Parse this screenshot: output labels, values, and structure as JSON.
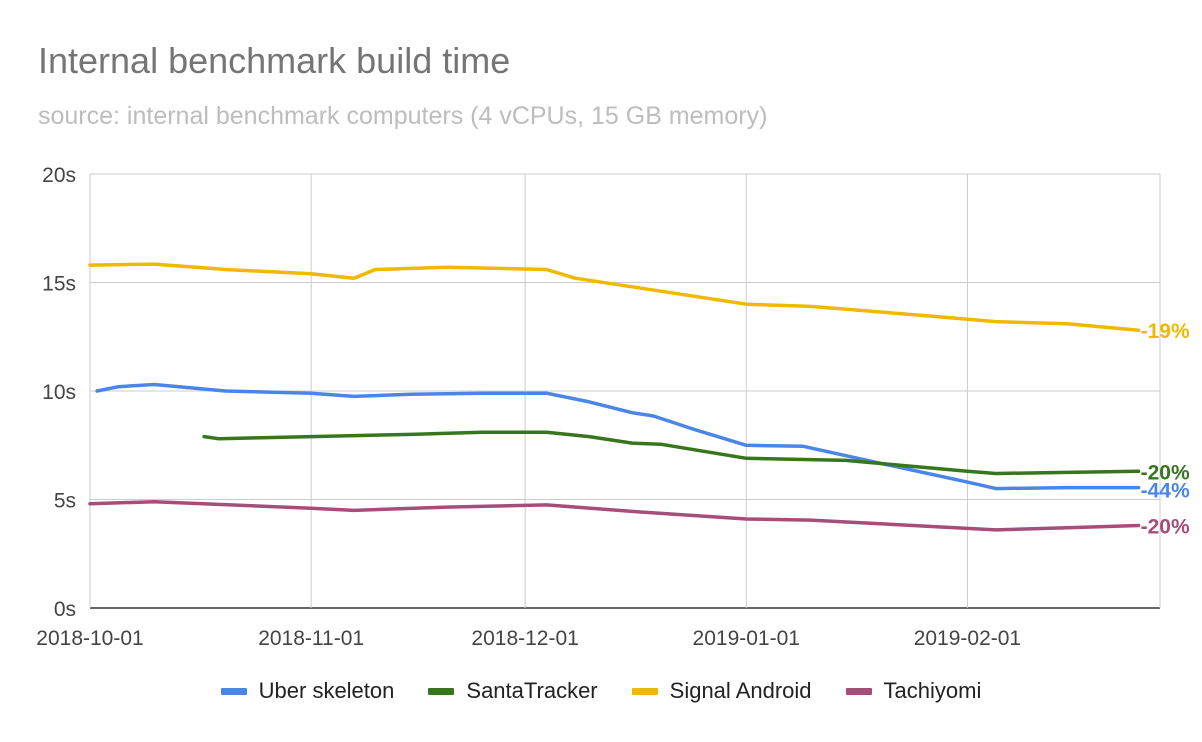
{
  "chart_data": {
    "type": "line",
    "title": "Internal benchmark build time",
    "subtitle": "source:  internal benchmark computers (4 vCPUs, 15 GB memory)",
    "x_type": "date",
    "xlim": [
      "2018-10-01",
      "2019-02-28"
    ],
    "x_ticks": [
      "2018-10-01",
      "2018-11-01",
      "2018-12-01",
      "2019-01-01",
      "2019-02-01"
    ],
    "ylim": [
      0,
      20
    ],
    "y_ticks": [
      0,
      5,
      10,
      15,
      20
    ],
    "y_tick_labels": [
      "0s",
      "5s",
      "10s",
      "15s",
      "20s"
    ],
    "grid": true,
    "legend_position": "bottom",
    "series": [
      {
        "name": "Uber skeleton",
        "color": "#4a86e8",
        "end_label": "-44%",
        "points": [
          [
            "2018-10-02",
            10.0
          ],
          [
            "2018-10-05",
            10.2
          ],
          [
            "2018-10-10",
            10.3
          ],
          [
            "2018-10-20",
            10.0
          ],
          [
            "2018-11-01",
            9.9
          ],
          [
            "2018-11-07",
            9.75
          ],
          [
            "2018-11-15",
            9.85
          ],
          [
            "2018-11-25",
            9.9
          ],
          [
            "2018-12-04",
            9.9
          ],
          [
            "2018-12-10",
            9.5
          ],
          [
            "2018-12-16",
            9.0
          ],
          [
            "2018-12-19",
            8.85
          ],
          [
            "2018-12-25",
            8.2
          ],
          [
            "2019-01-01",
            7.5
          ],
          [
            "2019-01-09",
            7.45
          ],
          [
            "2019-01-18",
            6.8
          ],
          [
            "2019-02-01",
            5.8
          ],
          [
            "2019-02-05",
            5.5
          ],
          [
            "2019-02-15",
            5.55
          ],
          [
            "2019-02-25",
            5.55
          ]
        ]
      },
      {
        "name": "SantaTracker",
        "color": "#38761d",
        "end_label": "-20%",
        "points": [
          [
            "2018-10-17",
            7.9
          ],
          [
            "2018-10-19",
            7.8
          ],
          [
            "2018-10-25",
            7.85
          ],
          [
            "2018-11-01",
            7.9
          ],
          [
            "2018-11-15",
            8.0
          ],
          [
            "2018-11-25",
            8.1
          ],
          [
            "2018-12-04",
            8.1
          ],
          [
            "2018-12-10",
            7.9
          ],
          [
            "2018-12-16",
            7.6
          ],
          [
            "2018-12-20",
            7.55
          ],
          [
            "2019-01-01",
            6.9
          ],
          [
            "2019-01-15",
            6.8
          ],
          [
            "2019-02-01",
            6.3
          ],
          [
            "2019-02-05",
            6.2
          ],
          [
            "2019-02-15",
            6.25
          ],
          [
            "2019-02-25",
            6.3
          ]
        ]
      },
      {
        "name": "Signal Android",
        "color": "#f1b800",
        "end_label": "-19%",
        "points": [
          [
            "2018-10-01",
            15.8
          ],
          [
            "2018-10-10",
            15.85
          ],
          [
            "2018-10-20",
            15.6
          ],
          [
            "2018-11-01",
            15.4
          ],
          [
            "2018-11-07",
            15.2
          ],
          [
            "2018-11-10",
            15.6
          ],
          [
            "2018-11-20",
            15.7
          ],
          [
            "2018-12-04",
            15.6
          ],
          [
            "2018-12-08",
            15.2
          ],
          [
            "2018-12-16",
            14.8
          ],
          [
            "2019-01-01",
            14.0
          ],
          [
            "2019-01-10",
            13.9
          ],
          [
            "2019-01-25",
            13.5
          ],
          [
            "2019-02-05",
            13.2
          ],
          [
            "2019-02-15",
            13.1
          ],
          [
            "2019-02-25",
            12.8
          ]
        ]
      },
      {
        "name": "Tachiyomi",
        "color": "#a64d79",
        "end_label": "-20%",
        "points": [
          [
            "2018-10-01",
            4.8
          ],
          [
            "2018-10-10",
            4.9
          ],
          [
            "2018-11-01",
            4.6
          ],
          [
            "2018-11-07",
            4.5
          ],
          [
            "2018-11-20",
            4.65
          ],
          [
            "2018-12-04",
            4.75
          ],
          [
            "2018-12-16",
            4.45
          ],
          [
            "2019-01-01",
            4.1
          ],
          [
            "2019-01-10",
            4.05
          ],
          [
            "2019-02-05",
            3.6
          ],
          [
            "2019-02-15",
            3.7
          ],
          [
            "2019-02-25",
            3.8
          ]
        ]
      }
    ]
  }
}
